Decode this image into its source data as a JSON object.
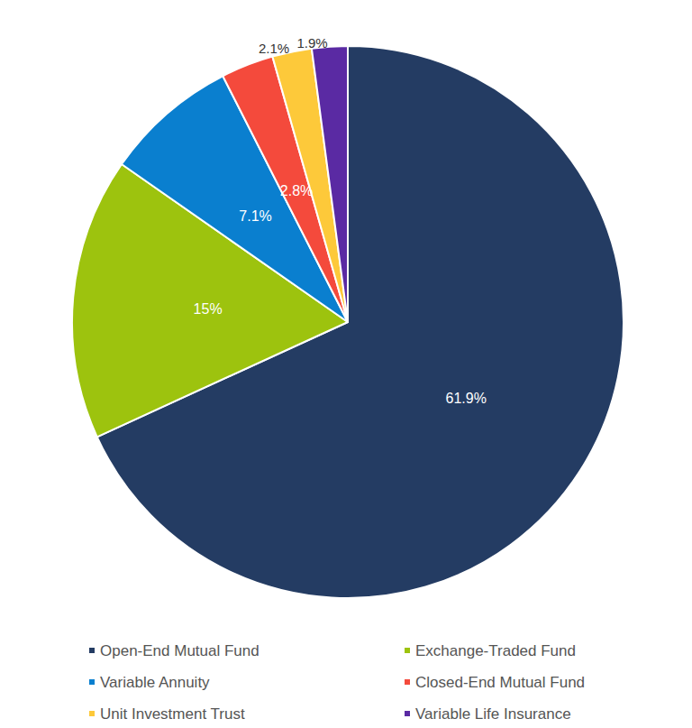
{
  "chart_data": {
    "type": "pie",
    "categories": [
      "Open-End Mutual Fund",
      "Exchange-Traded Fund",
      "Variable Annuity",
      "Closed-End Mutual Fund",
      "Unit Investment Trust",
      "Variable Life Insurance"
    ],
    "values": [
      61.9,
      15,
      7.1,
      2.8,
      2.1,
      1.9
    ],
    "value_labels": [
      "61.9%",
      "15%",
      "7.1%",
      "2.8%",
      "2.1%",
      "1.9%"
    ],
    "colors": [
      "#243c63",
      "#9dc30e",
      "#0a7fcf",
      "#f44a3c",
      "#fdc93a",
      "#5a2aa3"
    ],
    "data_labels": true,
    "legend": "bottom"
  }
}
